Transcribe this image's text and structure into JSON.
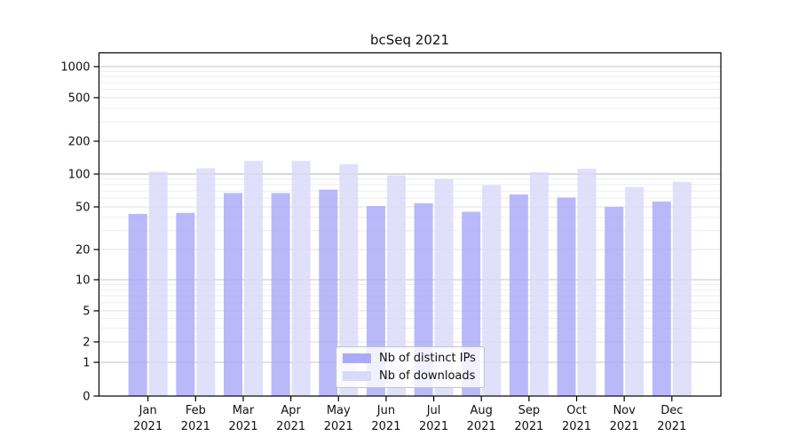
{
  "chart_data": {
    "type": "bar",
    "title": "bcSeq 2021",
    "categories": [
      "Jan 2021",
      "Feb 2021",
      "Mar 2021",
      "Apr 2021",
      "May 2021",
      "Jun 2021",
      "Jul 2021",
      "Aug 2021",
      "Sep 2021",
      "Oct 2021",
      "Nov 2021",
      "Dec 2021"
    ],
    "series": [
      {
        "name": "Nb of distinct IPs",
        "color": "#aaaaf8",
        "values": [
          43,
          44,
          67,
          67,
          72,
          51,
          54,
          45,
          65,
          61,
          50,
          56
        ]
      },
      {
        "name": "Nb of downloads",
        "color": "#d9d9fa",
        "values": [
          105,
          113,
          132,
          132,
          123,
          97,
          90,
          79,
          104,
          112,
          76,
          85
        ]
      }
    ],
    "xlabel": "",
    "ylabel": "",
    "yscale": "symlog",
    "yticks": [
      0,
      1,
      2,
      5,
      10,
      20,
      50,
      100,
      200,
      500,
      1000
    ],
    "ylim": [
      0,
      1200
    ],
    "grid": true,
    "legend_position": "lower center",
    "colors": {
      "grid_major": "#b0b0b0",
      "grid_decade": "#c6c6c6",
      "grid_labeled_minor": "#e0e0e0",
      "grid_minor": "#eeeeee",
      "spine": "#000000",
      "text": "#111111"
    }
  }
}
